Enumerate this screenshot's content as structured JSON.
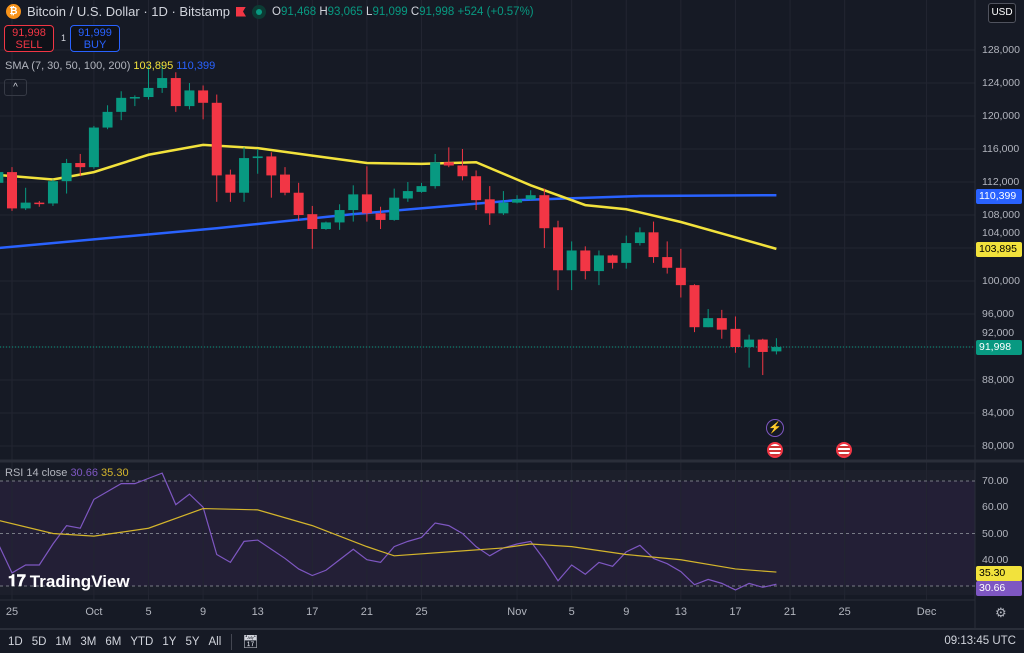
{
  "header": {
    "symbol": "Bitcoin / U.S. Dollar · 1D · Bitstamp",
    "coin_glyph": "₿",
    "ohlc": {
      "o_label": "O",
      "o": "91,468",
      "h_label": "H",
      "h": "93,065",
      "l_label": "L",
      "l": "91,099",
      "c_label": "C",
      "c": "91,998",
      "change": "+524 (+0.57%)"
    }
  },
  "trade": {
    "sell_price": "91,998",
    "sell_label": "SELL",
    "qty": "1",
    "buy_price": "91,999",
    "buy_label": "BUY"
  },
  "indicator": {
    "label": "SMA (7, 30, 50, 100, 200)",
    "v1": "103,895",
    "v2": "110,399",
    "collapse": "^"
  },
  "currency": "USD",
  "colors": {
    "up": "#089981",
    "down": "#f23645",
    "sma_yellow": "#f2e23c",
    "sma_blue": "#2962ff",
    "rsi": "#7e57c2",
    "rsi_ma": "#d4b52c"
  },
  "price_axis": [
    "128,000",
    "124,000",
    "120,000",
    "116,000",
    "112,000",
    "108,000",
    "104,000",
    "100,000",
    "96,000",
    "92,000",
    "88,000",
    "84,000",
    "80,000"
  ],
  "price_tags": {
    "blue": "110,399",
    "yellow": "103,895",
    "last": "91,998"
  },
  "rsi": {
    "label": "RSI 14 close",
    "value": "30.66",
    "ma_value": "35.30",
    "axis": [
      "70.00",
      "60.00",
      "50.00",
      "40.00"
    ]
  },
  "date_axis": [
    {
      "t": "25",
      "d": 0
    },
    {
      "t": "Oct",
      "d": 6
    },
    {
      "t": "5",
      "d": 10
    },
    {
      "t": "9",
      "d": 14
    },
    {
      "t": "13",
      "d": 18
    },
    {
      "t": "17",
      "d": 22
    },
    {
      "t": "21",
      "d": 26
    },
    {
      "t": "25",
      "d": 30
    },
    {
      "t": "Nov",
      "d": 37
    },
    {
      "t": "5",
      "d": 41
    },
    {
      "t": "9",
      "d": 45
    },
    {
      "t": "13",
      "d": 49
    },
    {
      "t": "17",
      "d": 53
    },
    {
      "t": "21",
      "d": 57
    },
    {
      "t": "25",
      "d": 61
    },
    {
      "t": "Dec",
      "d": 67
    }
  ],
  "watermark": "TradingView",
  "toolbar": {
    "ranges": [
      "1D",
      "5D",
      "1M",
      "3M",
      "6M",
      "YTD",
      "1Y",
      "5Y",
      "All"
    ],
    "time": "09:13:45 UTC"
  },
  "chart_data": {
    "type": "candlestick",
    "start_date": "Sep 24",
    "ylim": [
      78000,
      130000
    ],
    "candles": [
      [
        111900,
        113500,
        111500,
        113200
      ],
      [
        113200,
        113800,
        108500,
        108800
      ],
      [
        108800,
        111300,
        108600,
        109500
      ],
      [
        109500,
        109700,
        109000,
        109400
      ],
      [
        109400,
        112300,
        109100,
        112100
      ],
      [
        112100,
        114800,
        110600,
        114300
      ],
      [
        114300,
        115400,
        112700,
        113800
      ],
      [
        113800,
        118800,
        113600,
        118600
      ],
      [
        118600,
        121300,
        118400,
        120500
      ],
      [
        120500,
        123000,
        119500,
        122200
      ],
      [
        122200,
        122500,
        121200,
        122300
      ],
      [
        122300,
        126000,
        122000,
        123400
      ],
      [
        123400,
        126200,
        122800,
        124600
      ],
      [
        124600,
        125300,
        120500,
        121200
      ],
      [
        121200,
        124000,
        120800,
        123100
      ],
      [
        123100,
        123700,
        119600,
        121600
      ],
      [
        121600,
        122600,
        109600,
        112800
      ],
      [
        112900,
        113500,
        109600,
        110700
      ],
      [
        110700,
        116200,
        109600,
        114900
      ],
      [
        114900,
        116000,
        113000,
        115100
      ],
      [
        115100,
        115600,
        110100,
        112800
      ],
      [
        112900,
        113800,
        110400,
        110700
      ],
      [
        110700,
        111900,
        107300,
        108000
      ],
      [
        108100,
        109100,
        103900,
        106300
      ],
      [
        106300,
        107200,
        106200,
        107100
      ],
      [
        107100,
        109300,
        106200,
        108600
      ],
      [
        108600,
        111600,
        107200,
        110500
      ],
      [
        110500,
        113900,
        107200,
        108200
      ],
      [
        108200,
        109000,
        106300,
        107400
      ],
      [
        107400,
        111200,
        107300,
        110100
      ],
      [
        110000,
        112000,
        109600,
        110900
      ],
      [
        110800,
        111900,
        110700,
        111500
      ],
      [
        111500,
        115400,
        111200,
        114400
      ],
      [
        114400,
        116200,
        113800,
        114000
      ],
      [
        114000,
        116000,
        112200,
        112700
      ],
      [
        112700,
        113400,
        108600,
        109800
      ],
      [
        109900,
        111500,
        106800,
        108200
      ],
      [
        108200,
        110900,
        108000,
        109500
      ],
      [
        109500,
        110400,
        109400,
        109900
      ],
      [
        109900,
        111000,
        109800,
        110400
      ],
      [
        110400,
        111200,
        104000,
        106400
      ],
      [
        106500,
        107300,
        98900,
        101300
      ],
      [
        101300,
        104800,
        98900,
        103700
      ],
      [
        103700,
        104200,
        100200,
        101200
      ],
      [
        101200,
        103700,
        99500,
        103100
      ],
      [
        103100,
        103200,
        101500,
        102200
      ],
      [
        102200,
        105500,
        101500,
        104600
      ],
      [
        104600,
        106500,
        104300,
        105900
      ],
      [
        105900,
        107200,
        102200,
        102900
      ],
      [
        102900,
        104800,
        100900,
        101600
      ],
      [
        101600,
        103900,
        98000,
        99500
      ],
      [
        99500,
        99600,
        93800,
        94400
      ],
      [
        94400,
        96600,
        94400,
        95500
      ],
      [
        95500,
        96500,
        93000,
        94100
      ],
      [
        94200,
        95700,
        91300,
        92000
      ],
      [
        92000,
        93500,
        89500,
        92900
      ],
      [
        92900,
        93000,
        88600,
        91400
      ],
      [
        91468,
        93065,
        91099,
        91998
      ]
    ],
    "sma_yellow": [
      [
        -1,
        112850
      ],
      [
        3,
        112300
      ],
      [
        6,
        113200
      ],
      [
        10,
        115300
      ],
      [
        14,
        116500
      ],
      [
        18,
        116100
      ],
      [
        22,
        115200
      ],
      [
        26,
        114300
      ],
      [
        30,
        114200
      ],
      [
        34,
        114400
      ],
      [
        38,
        111600
      ],
      [
        42,
        109200
      ],
      [
        45,
        108700
      ],
      [
        49,
        107150
      ],
      [
        53,
        105300
      ],
      [
        56,
        103895
      ]
    ],
    "sma_blue": [
      [
        -1,
        104000
      ],
      [
        15,
        106400
      ],
      [
        25,
        108100
      ],
      [
        37,
        109800
      ],
      [
        46,
        110300
      ],
      [
        56,
        110399
      ]
    ],
    "rsi_values": [
      46,
      35,
      38,
      38,
      46,
      53,
      52,
      63,
      66,
      69,
      69,
      71,
      73,
      61,
      65,
      60,
      42,
      39,
      47,
      47.5,
      44,
      40.5,
      36.5,
      34,
      36,
      40,
      44,
      40,
      39,
      45,
      47,
      48.5,
      54,
      53,
      50,
      45,
      41.5,
      44.5,
      46,
      47,
      40,
      32,
      38,
      34.5,
      39,
      37.5,
      43,
      45.5,
      40.5,
      38.5,
      35.5,
      30.5,
      32.5,
      31,
      28.5,
      31,
      29.5,
      30.66
    ],
    "rsi_ma": [
      [
        -1,
        55
      ],
      [
        3,
        50
      ],
      [
        6,
        49
      ],
      [
        10,
        52
      ],
      [
        14,
        59.5
      ],
      [
        18,
        59
      ],
      [
        22,
        53
      ],
      [
        26,
        45
      ],
      [
        28,
        41.5
      ],
      [
        32,
        43
      ],
      [
        36,
        44.5
      ],
      [
        38,
        46
      ],
      [
        41,
        45
      ],
      [
        45,
        42
      ],
      [
        49,
        40
      ],
      [
        53,
        36.5
      ],
      [
        56,
        35.3
      ]
    ],
    "rsi_levels": [
      70,
      50,
      30
    ]
  }
}
